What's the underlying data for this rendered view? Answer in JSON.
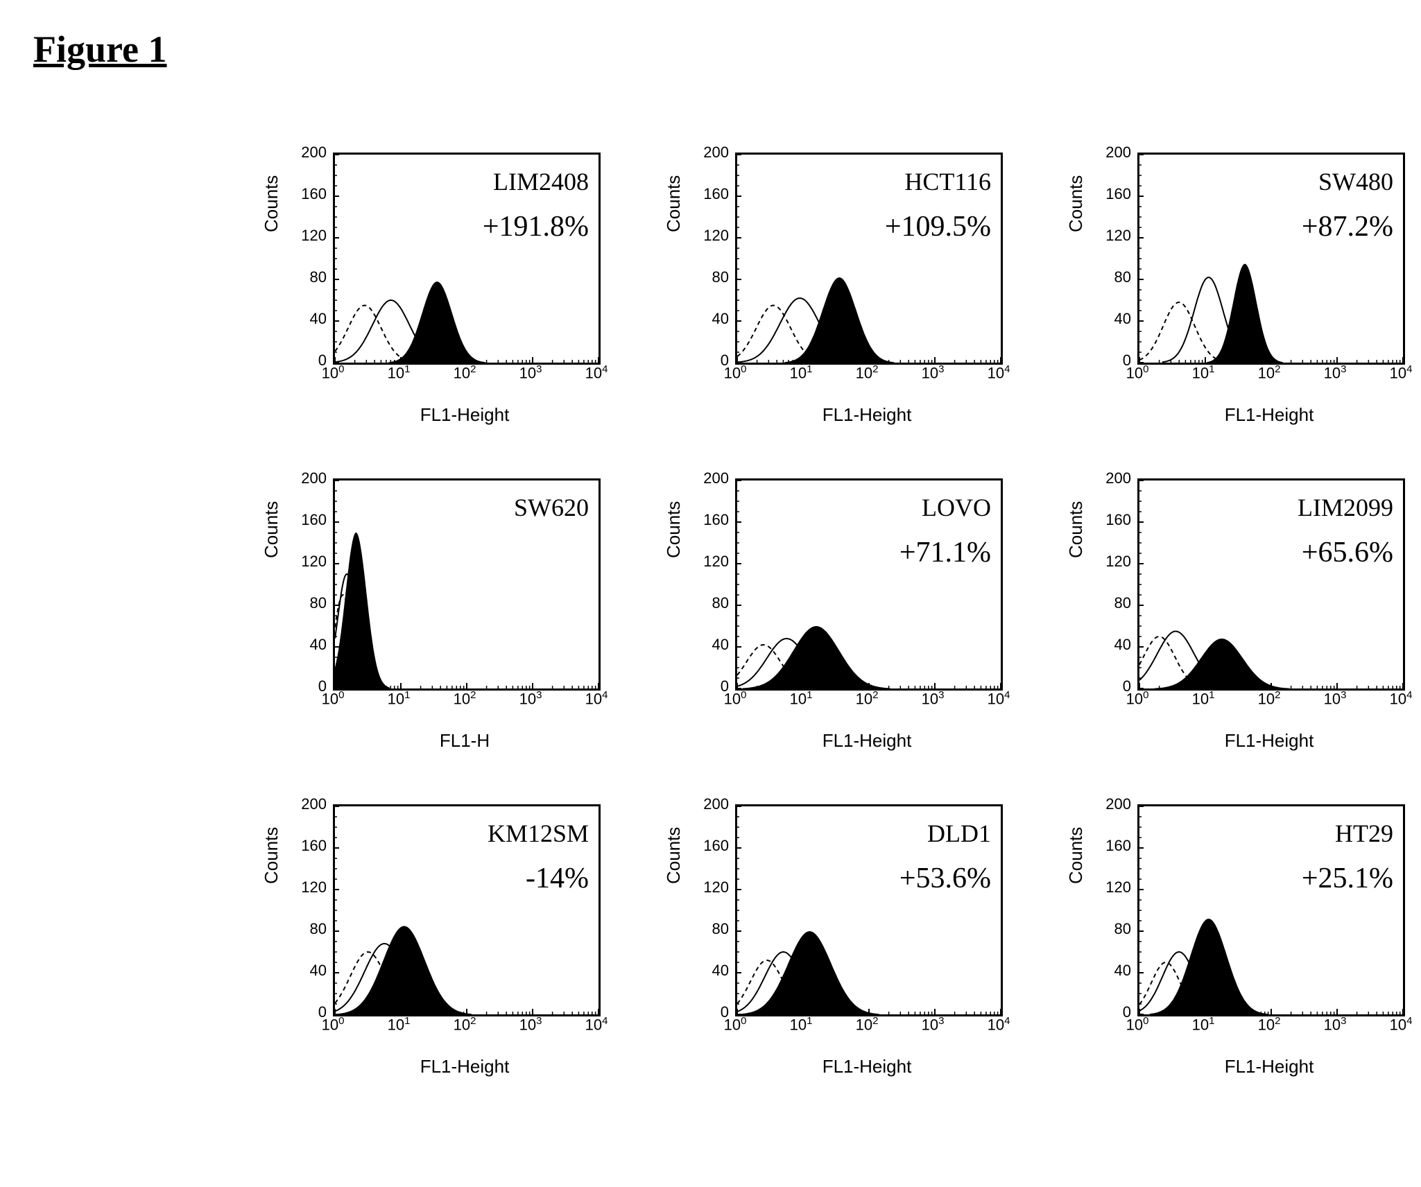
{
  "figure_title": "Figure 1",
  "layout": {
    "rows": 3,
    "cols": 3
  },
  "axes": {
    "ylabel": "Counts",
    "xlabel": "FL1-Height",
    "xlabel_alt": "FL1-H",
    "yticks": [
      0,
      40,
      80,
      120,
      160,
      200
    ],
    "ymax": 200,
    "xticks_log10": [
      0,
      1,
      2,
      3,
      4
    ],
    "xtick_labels": [
      "10⁰",
      "10¹",
      "10²",
      "10³",
      "10⁴"
    ],
    "scale": "log10"
  },
  "style": {
    "background_color": "#ffffff",
    "axis_color": "#000000",
    "axis_line_width": 3,
    "filled_hist_color": "#000000",
    "open_hist_stroke": "#000000",
    "open_hist_stroke_width": 2,
    "dash_pattern": "6,5",
    "title_font": "Times New Roman",
    "title_fontsize": 54,
    "cell_label_fontsize": 36,
    "percent_fontsize": 42,
    "axis_label_fontsize": 26,
    "tick_fontsize": 22
  },
  "panels": [
    {
      "cell_line": "LIM2408",
      "percent": "+191.8%",
      "xlabel": "FL1-Height",
      "filled_peak_log10": 1.55,
      "filled_peak_count": 78,
      "filled_sigma": 0.23,
      "open_peak_log10": 0.85,
      "open_peak_count": 60,
      "open_sigma": 0.28,
      "dashed_peak_log10": 0.45,
      "dashed_peak_count": 55,
      "dashed_sigma": 0.25
    },
    {
      "cell_line": "HCT116",
      "percent": "+109.5%",
      "xlabel": "FL1-Height",
      "filled_peak_log10": 1.55,
      "filled_peak_count": 82,
      "filled_sigma": 0.26,
      "open_peak_log10": 0.95,
      "open_peak_count": 62,
      "open_sigma": 0.3,
      "dashed_peak_log10": 0.55,
      "dashed_peak_count": 55,
      "dashed_sigma": 0.26
    },
    {
      "cell_line": "SW480",
      "percent": "+87.2%",
      "xlabel": "FL1-Height",
      "filled_peak_log10": 1.6,
      "filled_peak_count": 95,
      "filled_sigma": 0.18,
      "open_peak_log10": 1.05,
      "open_peak_count": 82,
      "open_sigma": 0.22,
      "dashed_peak_log10": 0.6,
      "dashed_peak_count": 58,
      "dashed_sigma": 0.24
    },
    {
      "cell_line": "SW620",
      "percent": "",
      "xlabel": "FL1-H",
      "filled_peak_log10": 0.32,
      "filled_peak_count": 150,
      "filled_sigma": 0.16,
      "open_peak_log10": 0.18,
      "open_peak_count": 110,
      "open_sigma": 0.14,
      "dashed_peak_log10": 0.12,
      "dashed_peak_count": 90,
      "dashed_sigma": 0.13
    },
    {
      "cell_line": "LOVO",
      "percent": "+71.1%",
      "xlabel": "FL1-Height",
      "filled_peak_log10": 1.2,
      "filled_peak_count": 60,
      "filled_sigma": 0.35,
      "open_peak_log10": 0.75,
      "open_peak_count": 48,
      "open_sigma": 0.3,
      "dashed_peak_log10": 0.4,
      "dashed_peak_count": 42,
      "dashed_sigma": 0.26
    },
    {
      "cell_line": "LIM2099",
      "percent": "+65.6%",
      "xlabel": "FL1-Height",
      "filled_peak_log10": 1.25,
      "filled_peak_count": 48,
      "filled_sigma": 0.32,
      "open_peak_log10": 0.55,
      "open_peak_count": 55,
      "open_sigma": 0.28,
      "dashed_peak_log10": 0.3,
      "dashed_peak_count": 50,
      "dashed_sigma": 0.24
    },
    {
      "cell_line": "KM12SM",
      "percent": "-14%",
      "xlabel": "FL1-Height",
      "filled_peak_log10": 1.05,
      "filled_peak_count": 85,
      "filled_sigma": 0.32,
      "open_peak_log10": 0.75,
      "open_peak_count": 68,
      "open_sigma": 0.3,
      "dashed_peak_log10": 0.5,
      "dashed_peak_count": 60,
      "dashed_sigma": 0.27
    },
    {
      "cell_line": "DLD1",
      "percent": "+53.6%",
      "xlabel": "FL1-Height",
      "filled_peak_log10": 1.1,
      "filled_peak_count": 80,
      "filled_sigma": 0.33,
      "open_peak_log10": 0.7,
      "open_peak_count": 60,
      "open_sigma": 0.28,
      "dashed_peak_log10": 0.45,
      "dashed_peak_count": 52,
      "dashed_sigma": 0.25
    },
    {
      "cell_line": "HT29",
      "percent": "+25.1%",
      "xlabel": "FL1-Height",
      "filled_peak_log10": 1.05,
      "filled_peak_count": 92,
      "filled_sigma": 0.28,
      "open_peak_log10": 0.6,
      "open_peak_count": 60,
      "open_sigma": 0.25,
      "dashed_peak_log10": 0.4,
      "dashed_peak_count": 50,
      "dashed_sigma": 0.22
    }
  ]
}
